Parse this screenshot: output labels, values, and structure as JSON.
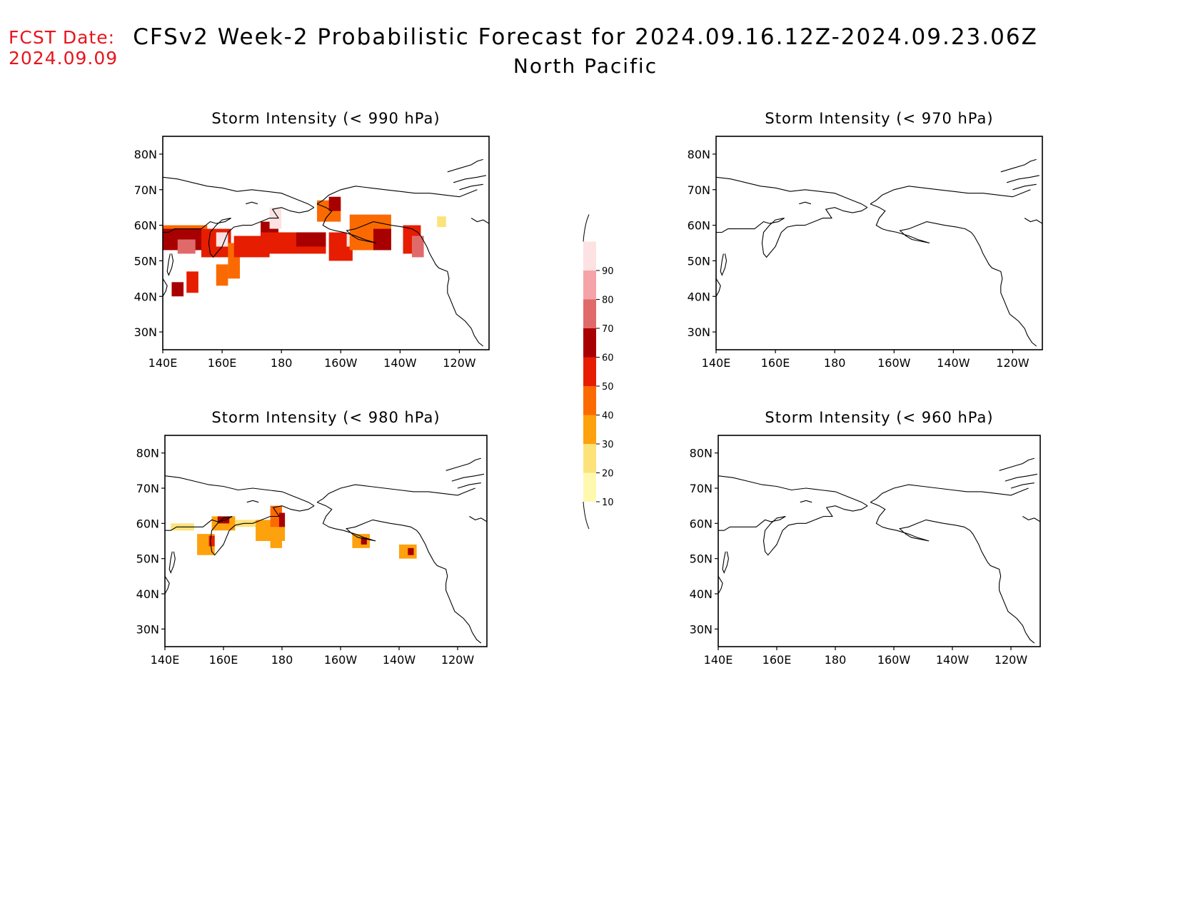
{
  "header": {
    "fcst_label": "FCST Date:",
    "fcst_date": "2024.09.09",
    "title": "CFSv2 Week-2 Probabilistic Forecast for 2024.09.16.12Z-2024.09.23.06Z",
    "subtitle": "North Pacific"
  },
  "axes": {
    "lat_labels": [
      "80N",
      "70N",
      "60N",
      "50N",
      "40N",
      "30N"
    ],
    "lon_labels": [
      "140E",
      "160E",
      "180",
      "160W",
      "140W",
      "120W"
    ],
    "lat_range": [
      25,
      85
    ],
    "lon_range": [
      140,
      250
    ]
  },
  "colorbar": {
    "levels": [
      "10",
      "20",
      "30",
      "40",
      "50",
      "60",
      "70",
      "80",
      "90"
    ],
    "colors": [
      "#fff9b0",
      "#fde27a",
      "#fda10d",
      "#fb6a00",
      "#e61d00",
      "#a80000",
      "#e06a6a",
      "#f4a4a8",
      "#fce2e2"
    ]
  },
  "panels": [
    {
      "id": "p990",
      "title": "Storm Intensity (< 990 hPa)",
      "cells": [
        {
          "lon": 144,
          "lat": 58,
          "w": 22,
          "h": 4,
          "level": 3
        },
        {
          "lon": 146,
          "lat": 56,
          "w": 14,
          "h": 6,
          "level": 5
        },
        {
          "lon": 148,
          "lat": 54,
          "w": 6,
          "h": 4,
          "level": 6
        },
        {
          "lon": 158,
          "lat": 55,
          "w": 10,
          "h": 8,
          "level": 4
        },
        {
          "lon": 160,
          "lat": 56,
          "w": 4,
          "h": 4,
          "level": 8
        },
        {
          "lon": 164,
          "lat": 50,
          "w": 4,
          "h": 10,
          "level": 3
        },
        {
          "lon": 160,
          "lat": 46,
          "w": 4,
          "h": 6,
          "level": 3
        },
        {
          "lon": 150,
          "lat": 44,
          "w": 4,
          "h": 6,
          "level": 4
        },
        {
          "lon": 145,
          "lat": 42,
          "w": 4,
          "h": 4,
          "level": 5
        },
        {
          "lon": 170,
          "lat": 54,
          "w": 12,
          "h": 6,
          "level": 4
        },
        {
          "lon": 176,
          "lat": 58,
          "w": 6,
          "h": 6,
          "level": 5
        },
        {
          "lon": 178,
          "lat": 62,
          "w": 4,
          "h": 6,
          "level": 8
        },
        {
          "lon": 184,
          "lat": 55,
          "w": 22,
          "h": 6,
          "level": 4
        },
        {
          "lon": 190,
          "lat": 56,
          "w": 10,
          "h": 4,
          "level": 5
        },
        {
          "lon": 196,
          "lat": 64,
          "w": 8,
          "h": 6,
          "level": 3
        },
        {
          "lon": 198,
          "lat": 66,
          "w": 4,
          "h": 4,
          "level": 5
        },
        {
          "lon": 200,
          "lat": 54,
          "w": 8,
          "h": 8,
          "level": 4
        },
        {
          "lon": 204,
          "lat": 56,
          "w": 4,
          "h": 4,
          "level": 8
        },
        {
          "lon": 210,
          "lat": 58,
          "w": 14,
          "h": 10,
          "level": 3
        },
        {
          "lon": 214,
          "lat": 56,
          "w": 6,
          "h": 6,
          "level": 5
        },
        {
          "lon": 224,
          "lat": 56,
          "w": 6,
          "h": 8,
          "level": 4
        },
        {
          "lon": 226,
          "lat": 54,
          "w": 4,
          "h": 6,
          "level": 6
        },
        {
          "lon": 234,
          "lat": 61,
          "w": 3,
          "h": 3,
          "level": 1
        }
      ]
    },
    {
      "id": "p970",
      "title": "Storm Intensity (< 970 hPa)",
      "cells": []
    },
    {
      "id": "p980",
      "title": "Storm Intensity (< 980 hPa)",
      "cells": [
        {
          "lon": 146,
          "lat": 59,
          "w": 8,
          "h": 2,
          "level": 1
        },
        {
          "lon": 154,
          "lat": 54,
          "w": 6,
          "h": 6,
          "level": 2
        },
        {
          "lon": 156,
          "lat": 55,
          "w": 2,
          "h": 3,
          "level": 4
        },
        {
          "lon": 160,
          "lat": 60,
          "w": 8,
          "h": 4,
          "level": 2
        },
        {
          "lon": 160,
          "lat": 61,
          "w": 4,
          "h": 2,
          "level": 5
        },
        {
          "lon": 168,
          "lat": 60,
          "w": 8,
          "h": 2,
          "level": 1
        },
        {
          "lon": 176,
          "lat": 58,
          "w": 10,
          "h": 6,
          "level": 2
        },
        {
          "lon": 178,
          "lat": 62,
          "w": 4,
          "h": 6,
          "level": 3
        },
        {
          "lon": 180,
          "lat": 61,
          "w": 2,
          "h": 4,
          "level": 5
        },
        {
          "lon": 178,
          "lat": 55,
          "w": 4,
          "h": 4,
          "level": 2
        },
        {
          "lon": 207,
          "lat": 55,
          "w": 6,
          "h": 4,
          "level": 2
        },
        {
          "lon": 208,
          "lat": 55,
          "w": 2,
          "h": 2,
          "level": 5
        },
        {
          "lon": 223,
          "lat": 52,
          "w": 6,
          "h": 4,
          "level": 2
        },
        {
          "lon": 224,
          "lat": 52,
          "w": 2,
          "h": 2,
          "level": 5
        }
      ]
    },
    {
      "id": "p960",
      "title": "Storm Intensity (< 960 hPa)",
      "cells": []
    }
  ]
}
